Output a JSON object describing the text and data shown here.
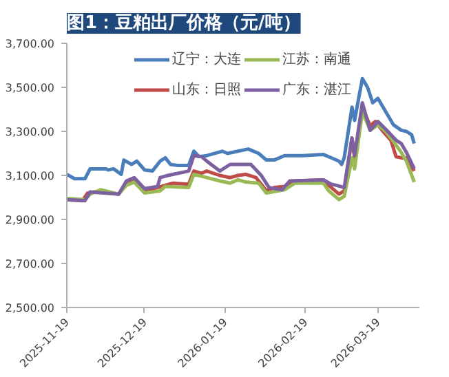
{
  "chart_data": {
    "type": "line",
    "title": "图1：豆粕出厂价格（元/吨）",
    "x": [
      "2025-11-19",
      "2025-11-22",
      "2025-11-26",
      "2025-11-28",
      "2025-12-04",
      "2025-12-05",
      "2025-12-07",
      "2025-12-10",
      "2025-12-11",
      "2025-12-14",
      "2025-12-16",
      "2025-12-19",
      "2025-12-22",
      "2025-12-25",
      "2025-12-27",
      "2025-12-29",
      "2026-01-01",
      "2026-01-05",
      "2026-01-07",
      "2026-01-09",
      "2026-01-12",
      "2026-01-18",
      "2026-01-20",
      "2026-01-24",
      "2026-01-28",
      "2026-02-01",
      "2026-02-04",
      "2026-02-07",
      "2026-02-11",
      "2026-02-18",
      "2026-02-26",
      "2026-02-28",
      "2026-03-04",
      "2026-03-05",
      "2026-03-06",
      "2026-03-09",
      "2026-03-10",
      "2026-03-13",
      "2026-03-15",
      "2026-03-17",
      "2026-03-19",
      "2026-03-22",
      "2026-03-25",
      "2026-03-28",
      "2026-03-30",
      "2026-04-01",
      "2026-04-02"
    ],
    "series": [
      {
        "name": "辽宁：大连",
        "color": "#4a7ebb",
        "values": [
          3105,
          3085,
          3085,
          3130,
          3130,
          3125,
          3130,
          3105,
          3170,
          3150,
          3165,
          3125,
          3120,
          3165,
          3180,
          3150,
          3145,
          3145,
          3210,
          3185,
          3190,
          3210,
          3200,
          3210,
          3220,
          3200,
          3170,
          3170,
          3190,
          3190,
          3195,
          3185,
          3165,
          3150,
          3180,
          3410,
          3350,
          3540,
          3500,
          3430,
          3450,
          3390,
          3330,
          3305,
          3300,
          3285,
          3245
        ]
      },
      {
        "name": "山东：日照",
        "color": "#be4b48",
        "x": [
          "2025-11-19",
          "2025-11-25",
          "2025-11-27",
          "2025-12-02",
          "2025-12-09",
          "2025-12-12",
          "2025-12-15",
          "2025-12-19",
          "2025-12-24",
          "2025-12-27",
          "2025-12-30",
          "2026-01-05",
          "2026-01-07",
          "2026-01-10",
          "2026-01-12",
          "2026-01-17",
          "2026-01-21",
          "2026-01-24",
          "2026-01-27",
          "2026-01-31",
          "2026-02-04",
          "2026-02-07",
          "2026-02-11",
          "2026-02-15",
          "2026-02-26",
          "2026-02-28",
          "2026-03-04",
          "2026-03-06",
          "2026-03-09",
          "2026-03-10",
          "2026-03-13",
          "2026-03-16",
          "2026-03-18",
          "2026-03-21",
          "2026-03-24",
          "2026-03-26",
          "2026-03-28",
          "2026-03-30",
          "2026-04-02"
        ],
        "values": [
          2990,
          2985,
          3020,
          3030,
          3015,
          3065,
          3085,
          3030,
          3045,
          3055,
          3065,
          3060,
          3120,
          3110,
          3120,
          3100,
          3090,
          3100,
          3105,
          3090,
          3030,
          3045,
          3050,
          3075,
          3080,
          3055,
          3015,
          3030,
          3270,
          3180,
          3410,
          3325,
          3345,
          3300,
          3260,
          3185,
          3180,
          3180,
          3120
        ]
      },
      {
        "name": "江苏：南通",
        "color": "#98b954",
        "x": [
          "2025-11-19",
          "2025-11-26",
          "2025-11-28",
          "2025-12-02",
          "2025-12-09",
          "2025-12-12",
          "2025-12-15",
          "2025-12-19",
          "2025-12-25",
          "2025-12-27",
          "2026-01-05",
          "2026-01-07",
          "2026-01-12",
          "2026-01-17",
          "2026-01-21",
          "2026-01-24",
          "2026-01-27",
          "2026-02-01",
          "2026-02-04",
          "2026-02-11",
          "2026-02-15",
          "2026-02-26",
          "2026-02-28",
          "2026-03-04",
          "2026-03-06",
          "2026-03-09",
          "2026-03-10",
          "2026-03-13",
          "2026-03-16",
          "2026-03-19",
          "2026-03-22",
          "2026-03-24",
          "2026-03-28",
          "2026-03-30",
          "2026-04-02"
        ],
        "values": [
          2995,
          2990,
          3015,
          3035,
          3015,
          3055,
          3070,
          3020,
          3030,
          3050,
          3045,
          3105,
          3090,
          3075,
          3065,
          3080,
          3070,
          3065,
          3020,
          3035,
          3065,
          3065,
          3030,
          2990,
          3005,
          3180,
          3130,
          3390,
          3305,
          3330,
          3300,
          3270,
          3205,
          3165,
          3070
        ]
      },
      {
        "name": "广东：湛江",
        "color": "#7d60a0",
        "x": [
          "2025-11-19",
          "2025-11-26",
          "2025-11-28",
          "2025-12-09",
          "2025-12-12",
          "2025-12-15",
          "2025-12-19",
          "2025-12-24",
          "2025-12-25",
          "2025-12-28",
          "2026-01-05",
          "2026-01-07",
          "2026-01-10",
          "2026-01-12",
          "2026-01-17",
          "2026-01-21",
          "2026-01-29",
          "2026-02-02",
          "2026-02-05",
          "2026-02-10",
          "2026-02-13",
          "2026-02-26",
          "2026-03-01",
          "2026-03-03",
          "2026-03-06",
          "2026-03-09",
          "2026-03-10",
          "2026-03-13",
          "2026-03-16",
          "2026-03-19",
          "2026-03-22",
          "2026-03-26",
          "2026-03-28",
          "2026-03-30",
          "2026-04-02"
        ],
        "values": [
          2990,
          2985,
          3025,
          3015,
          3075,
          3090,
          3040,
          3050,
          3090,
          3100,
          3120,
          3190,
          3185,
          3165,
          3120,
          3150,
          3150,
          3100,
          3045,
          3035,
          3075,
          3080,
          3060,
          3055,
          3045,
          3270,
          3190,
          3430,
          3305,
          3345,
          3310,
          3260,
          3245,
          3205,
          3130
        ]
      }
    ],
    "xlim": [
      "2025-11-19",
      "2026-04-04"
    ],
    "xticks": [
      {
        "value": "2025-11-19",
        "label": "2025-11-19"
      },
      {
        "value": "2025-12-19",
        "label": "2025-12-19"
      },
      {
        "value": "2026-01-19",
        "label": "2026-01-19"
      },
      {
        "value": "2026-02-19",
        "label": "2026-02-19"
      },
      {
        "value": "2026-03-19",
        "label": "2026-03-19"
      }
    ],
    "ylim": [
      2500,
      3700
    ],
    "yticks": [
      {
        "value": 2500,
        "label": "2,500.00"
      },
      {
        "value": 2700,
        "label": "2,700.00"
      },
      {
        "value": 2900,
        "label": "2,900.00"
      },
      {
        "value": 3100,
        "label": "3,100.00"
      },
      {
        "value": 3300,
        "label": "3,300.00"
      },
      {
        "value": 3500,
        "label": "3,500.00"
      },
      {
        "value": 3700,
        "label": "3,700.00"
      }
    ],
    "grid": false,
    "legend": "top",
    "marker": "none",
    "line_style": "solid"
  }
}
